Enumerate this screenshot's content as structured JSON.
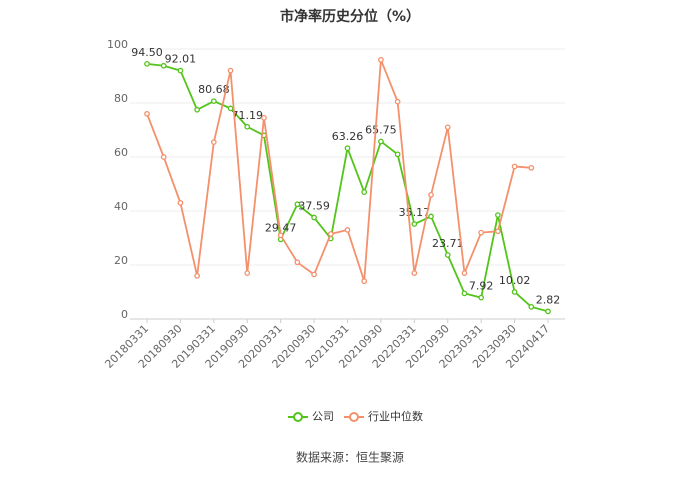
{
  "chart_data": {
    "type": "line",
    "title": "市净率历史分位（%）",
    "categories": [
      "20180331",
      null,
      "20180930",
      null,
      "20190331",
      null,
      "20190930",
      null,
      "20200331",
      null,
      "20200930",
      null,
      "20210331",
      null,
      "20210930",
      null,
      "20220331",
      null,
      "20220930",
      null,
      "20230331",
      null,
      "20230930",
      null,
      "20240417"
    ],
    "series": [
      {
        "name": "公司",
        "color": "#52c41a",
        "values": [
          94.5,
          93.8,
          92.01,
          77.5,
          80.68,
          78,
          71.19,
          68,
          29.47,
          42.5,
          37.59,
          29.8,
          63.26,
          47,
          65.75,
          61,
          35.17,
          38,
          23.71,
          9.5,
          7.92,
          38.5,
          10.02,
          4.5,
          2.82
        ],
        "value_labels": [
          "94.50",
          null,
          "92.01",
          null,
          "80.68",
          null,
          "71.19",
          null,
          "29.47",
          null,
          "37.59",
          null,
          "63.26",
          null,
          "65.75",
          null,
          "35.17",
          null,
          "23.71",
          null,
          "7.92",
          null,
          "10.02",
          null,
          "2.82"
        ]
      },
      {
        "name": "行业中位数",
        "color": "#f4906b",
        "values": [
          76,
          60,
          43,
          16,
          65.5,
          92,
          17,
          74.5,
          31,
          21,
          16.5,
          31.5,
          33,
          14,
          96,
          80.5,
          17,
          46,
          71,
          17,
          32,
          32.5,
          56.5,
          56,
          null
        ]
      }
    ],
    "ylim": [
      0,
      100
    ],
    "yticks": [
      0,
      20,
      40,
      60,
      80,
      100
    ],
    "grid": true,
    "source": "数据来源：恒生聚源"
  }
}
